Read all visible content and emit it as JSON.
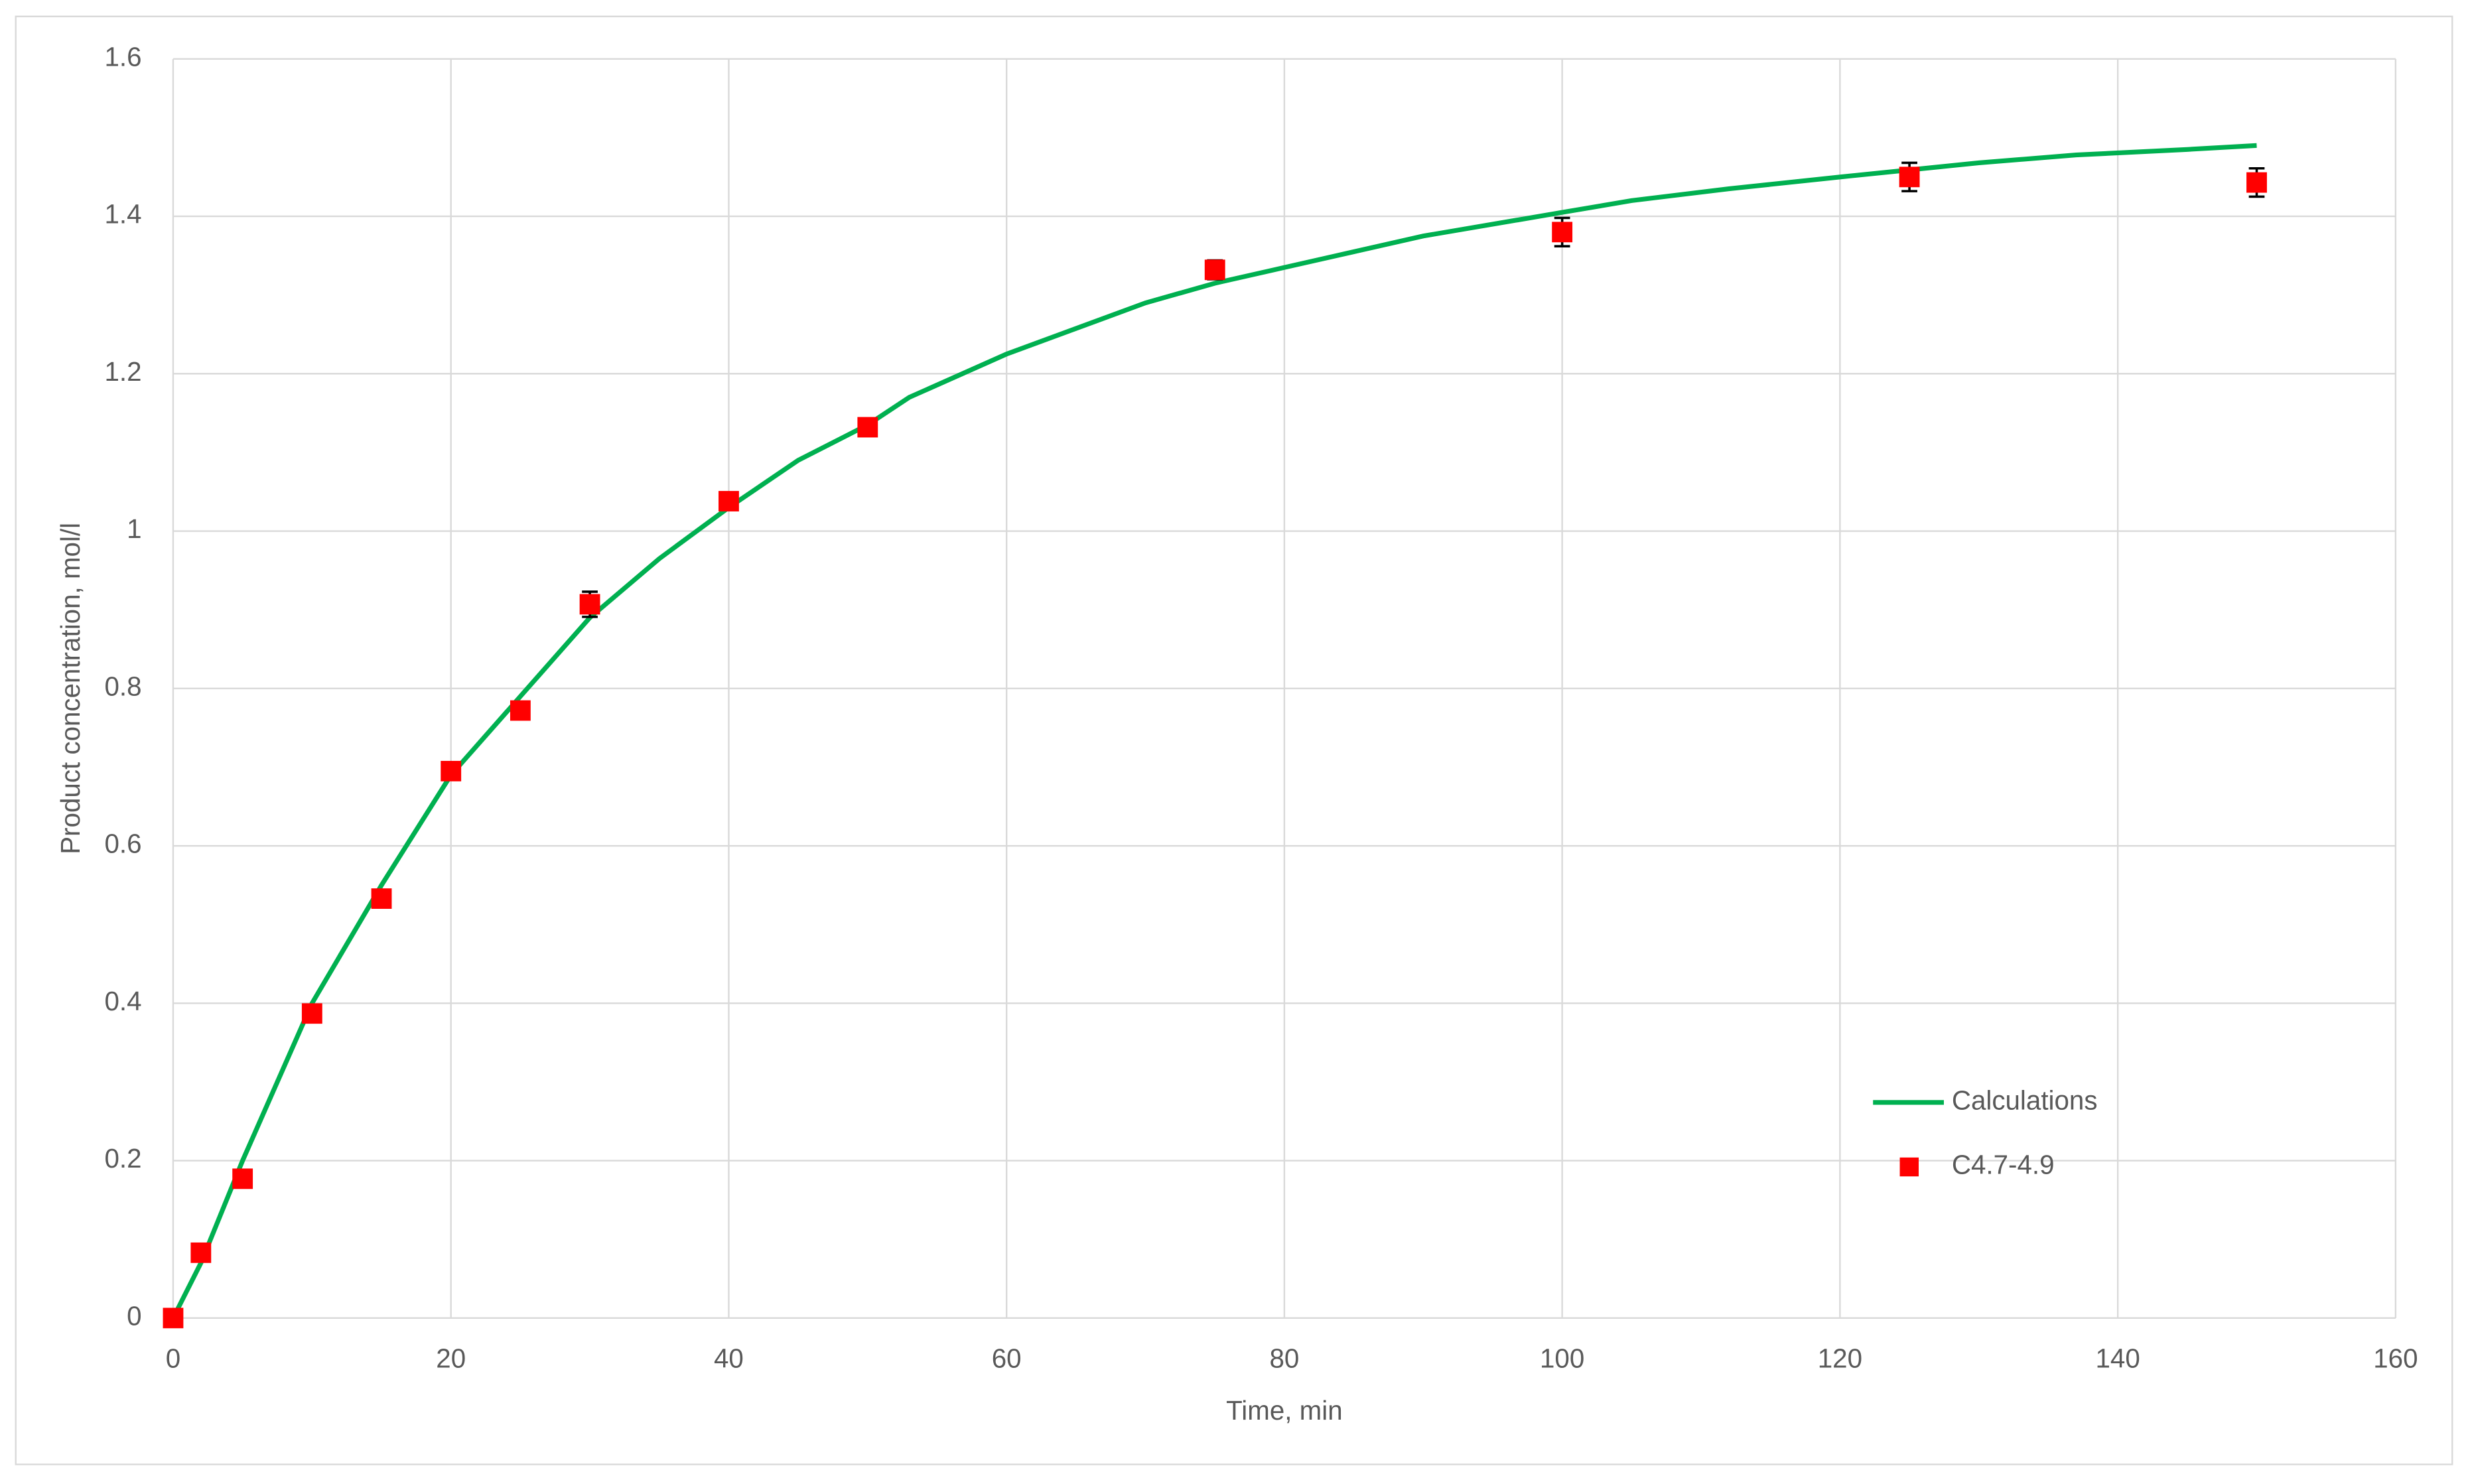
{
  "chart_data": {
    "type": "line-scatter",
    "x_label": "Time, min",
    "y_label": "Product concentration, mol/l",
    "xlim": [
      0,
      160
    ],
    "ylim": [
      0,
      1.6
    ],
    "xticks": [
      0,
      20,
      40,
      60,
      80,
      100,
      120,
      140,
      160
    ],
    "yticks": [
      0,
      0.2,
      0.4,
      0.6,
      0.8,
      1,
      1.2,
      1.4,
      1.6
    ],
    "grid": true,
    "legend": "right",
    "series": [
      {
        "name": "Calculations",
        "type": "line",
        "color": "#00b050",
        "x": [
          0,
          2,
          5,
          10,
          15,
          20,
          25,
          30,
          35,
          40,
          45,
          50,
          53,
          60,
          70,
          75,
          80,
          90,
          100,
          105,
          112,
          120,
          130,
          137,
          145,
          150
        ],
        "values": [
          0,
          0.07,
          0.2,
          0.4,
          0.55,
          0.69,
          0.79,
          0.89,
          0.965,
          1.03,
          1.09,
          1.135,
          1.17,
          1.225,
          1.29,
          1.315,
          1.335,
          1.375,
          1.405,
          1.42,
          1.435,
          1.45,
          1.468,
          1.478,
          1.485,
          1.49
        ]
      },
      {
        "name": "C4.7-4.9",
        "type": "scatter",
        "color": "#ff0000",
        "x": [
          0,
          2,
          5,
          10,
          15,
          20,
          25,
          30,
          40,
          50,
          75,
          100,
          125,
          150
        ],
        "values": [
          0,
          0.083,
          0.177,
          0.387,
          0.533,
          0.695,
          0.772,
          0.907,
          1.038,
          1.132,
          1.332,
          1.38,
          1.45,
          1.443
        ],
        "errors": [
          0.005,
          0.005,
          0.005,
          0.005,
          0.005,
          0.008,
          0.01,
          0.016,
          0.01,
          0.01,
          0.012,
          0.018,
          0.018,
          0.018
        ]
      }
    ]
  }
}
